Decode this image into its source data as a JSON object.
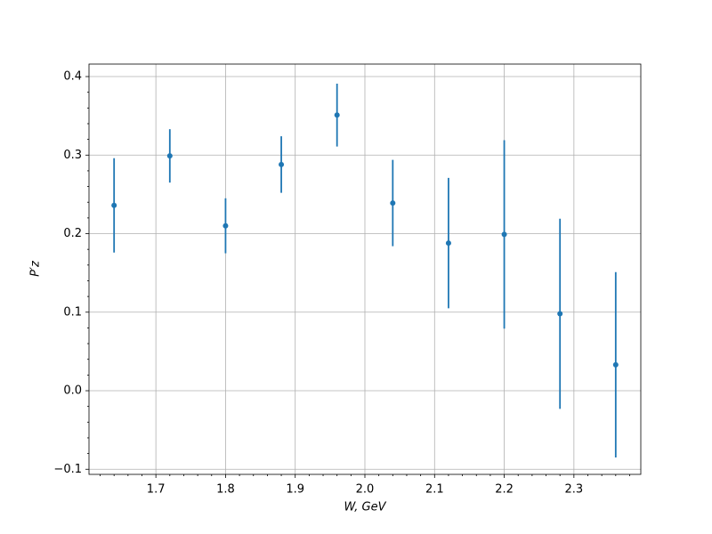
{
  "chart_data": {
    "type": "errorbar",
    "xlabel": "W, GeV",
    "ylabel": "P′z",
    "x": [
      1.64,
      1.72,
      1.8,
      1.88,
      1.96,
      2.04,
      2.12,
      2.2,
      2.28,
      2.36
    ],
    "series": [
      {
        "color": "#1f77b4",
        "values": [
          0.236,
          0.299,
          0.21,
          0.288,
          0.351,
          0.239,
          0.188,
          0.199,
          0.098,
          0.033
        ],
        "errors": [
          0.06,
          0.034,
          0.035,
          0.036,
          0.04,
          0.055,
          0.083,
          0.12,
          0.121,
          0.118
        ]
      }
    ],
    "xlim": [
      1.604,
      2.396
    ],
    "ylim": [
      -0.1065,
      0.4159
    ],
    "xticks": [
      1.7,
      1.8,
      1.9,
      {
        "value": 2.0,
        "label": "2.0"
      },
      2.1,
      2.2,
      2.3
    ],
    "yticks": [
      {
        "value": -0.1,
        "label": "−0.1"
      },
      {
        "value": 0.0,
        "label": "0.0"
      },
      0.1,
      0.2,
      0.3,
      0.4
    ],
    "xminorticks": [
      1.62,
      1.64,
      1.66,
      1.68,
      1.72,
      1.74,
      1.76,
      1.78,
      1.82,
      1.84,
      1.86,
      1.88,
      1.92,
      1.94,
      1.96,
      1.98,
      2.02,
      2.04,
      2.06,
      2.08,
      2.12,
      2.14,
      2.16,
      2.18,
      2.22,
      2.24,
      2.26,
      2.28,
      2.32,
      2.34,
      2.36,
      2.38
    ],
    "yminorticks": [
      -0.08,
      -0.06,
      -0.04,
      -0.02,
      0.02,
      0.04,
      0.06,
      0.08,
      0.12,
      0.14,
      0.16,
      0.18,
      0.22,
      0.24,
      0.26,
      0.28,
      0.32,
      0.34,
      0.36,
      0.38
    ],
    "grid": true
  }
}
